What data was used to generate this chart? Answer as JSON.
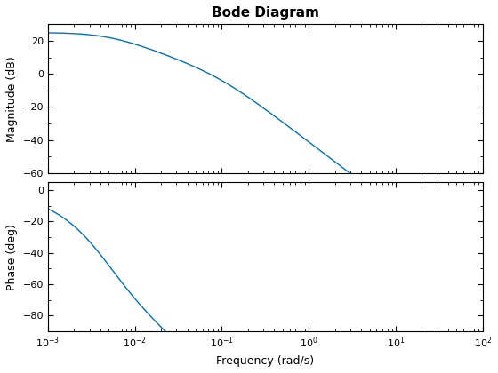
{
  "title": "Bode Diagram",
  "freq_min": 0.001,
  "freq_max": 100.0,
  "K": 17.8,
  "pole1": 0.005,
  "pole2": 0.1,
  "mag_ylim": [
    -60,
    30
  ],
  "mag_yticks": [
    -60,
    -40,
    -20,
    0,
    20
  ],
  "phase_ylim": [
    -90,
    5
  ],
  "phase_yticks": [
    -80,
    -60,
    -40,
    -20,
    0
  ],
  "xlabel": "Frequency (rad/s)",
  "ylabel_mag": "Magnitude (dB)",
  "ylabel_phase": "Phase (deg)",
  "line_color": "#0072BD",
  "line_width": 1.0,
  "background_color": "#ffffff",
  "title_fontsize": 11,
  "label_fontsize": 9,
  "tick_fontsize": 8
}
